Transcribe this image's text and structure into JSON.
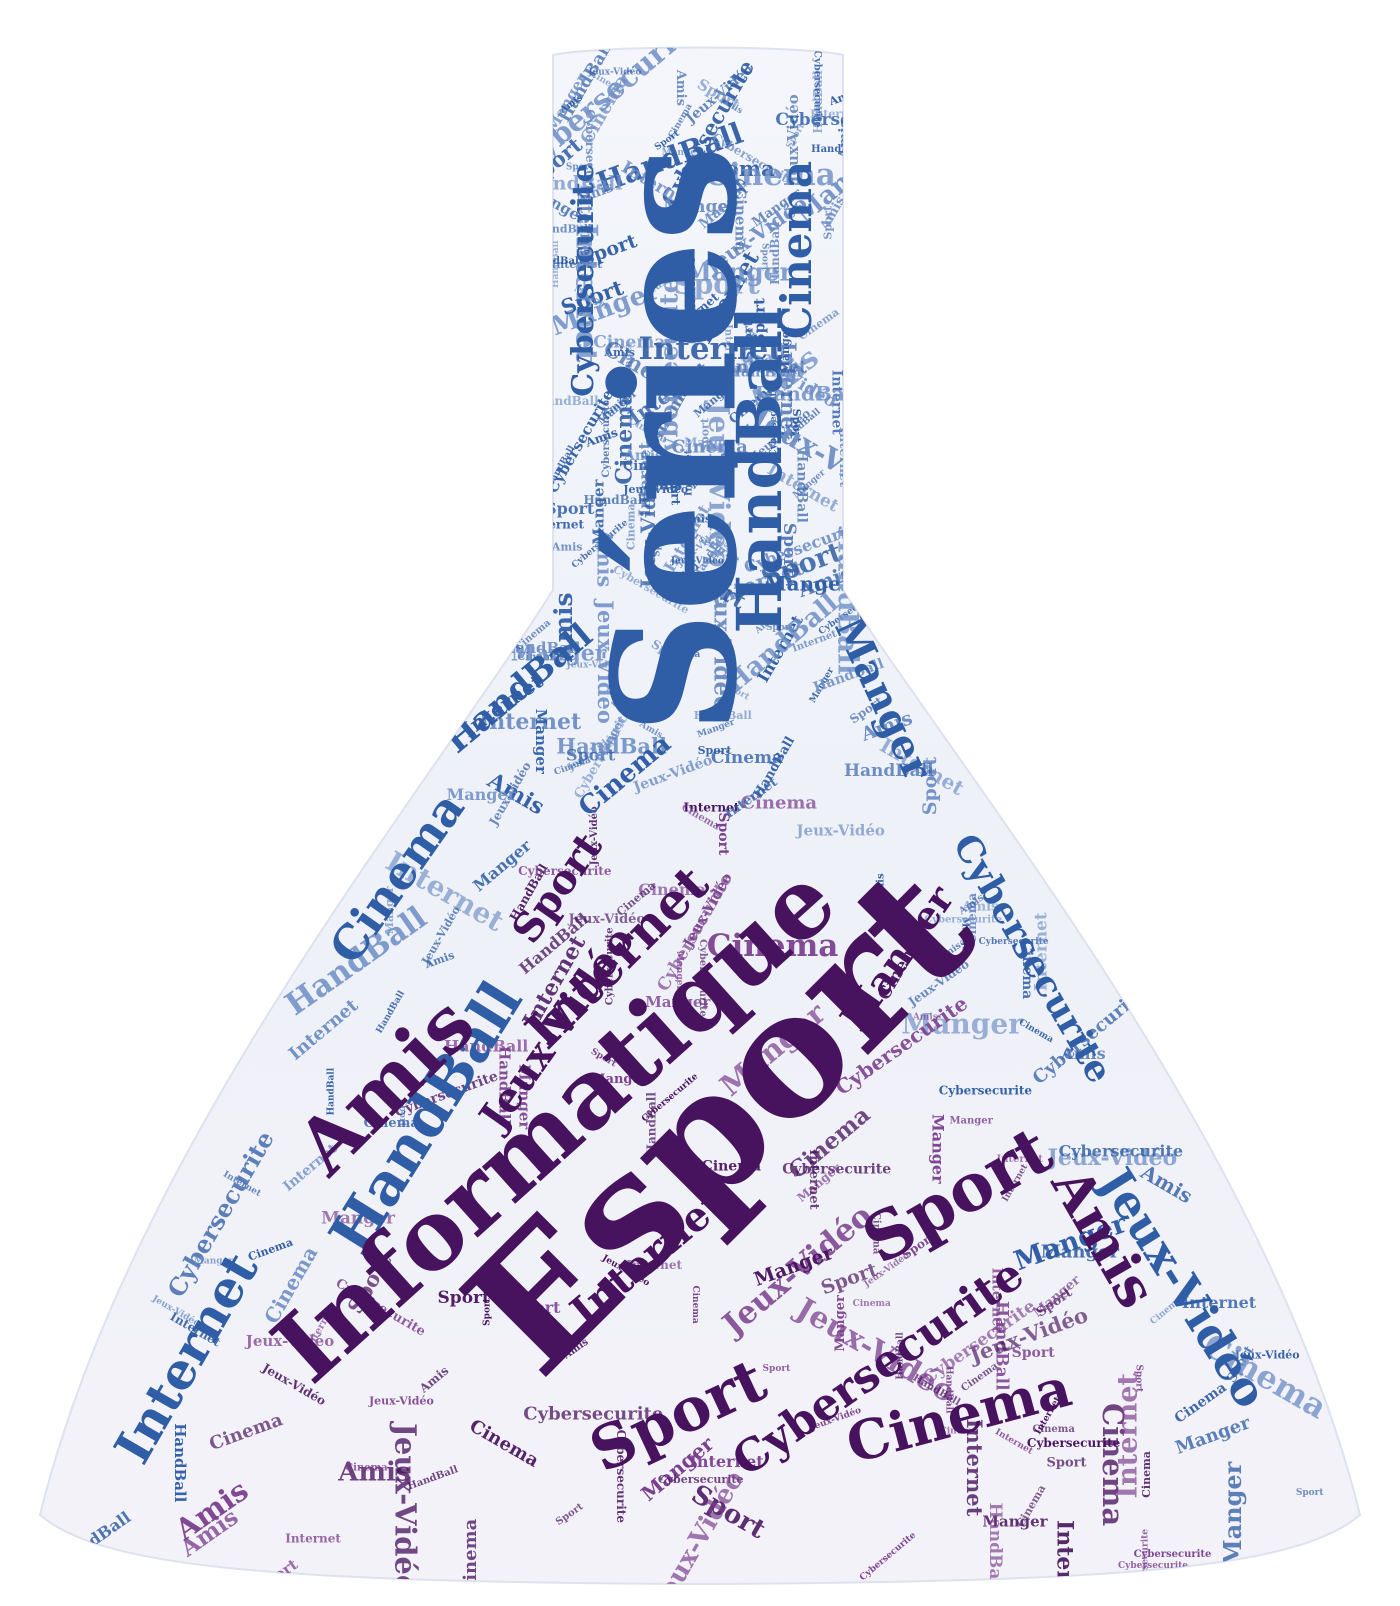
{
  "word_cloud": {
    "shape": "erlenmeyer-flask",
    "colors": {
      "background": "#ffffff",
      "flask_fill": "#f3f4fa",
      "flask_edge": "#dde2ee",
      "neck_word": "#2f5da6",
      "neck_word_light": "#6f8fc6",
      "body_word": "#47125e",
      "body_word_light": "#7a3e8e"
    },
    "featured_words": {
      "series": "Séries",
      "esport": "Esport",
      "informatique": "Informatique"
    },
    "words": {
      "series": "Séries",
      "esport": "Esport",
      "informatique": "Informatique",
      "amis": "Amis",
      "handball": "HandBall",
      "cinema": "Cinema",
      "internet": "Internet",
      "jeux_video": "Jeux-Vidéo",
      "sport": "Sport",
      "manger": "Manger",
      "cybersecurite": "Cybersecurite"
    }
  }
}
